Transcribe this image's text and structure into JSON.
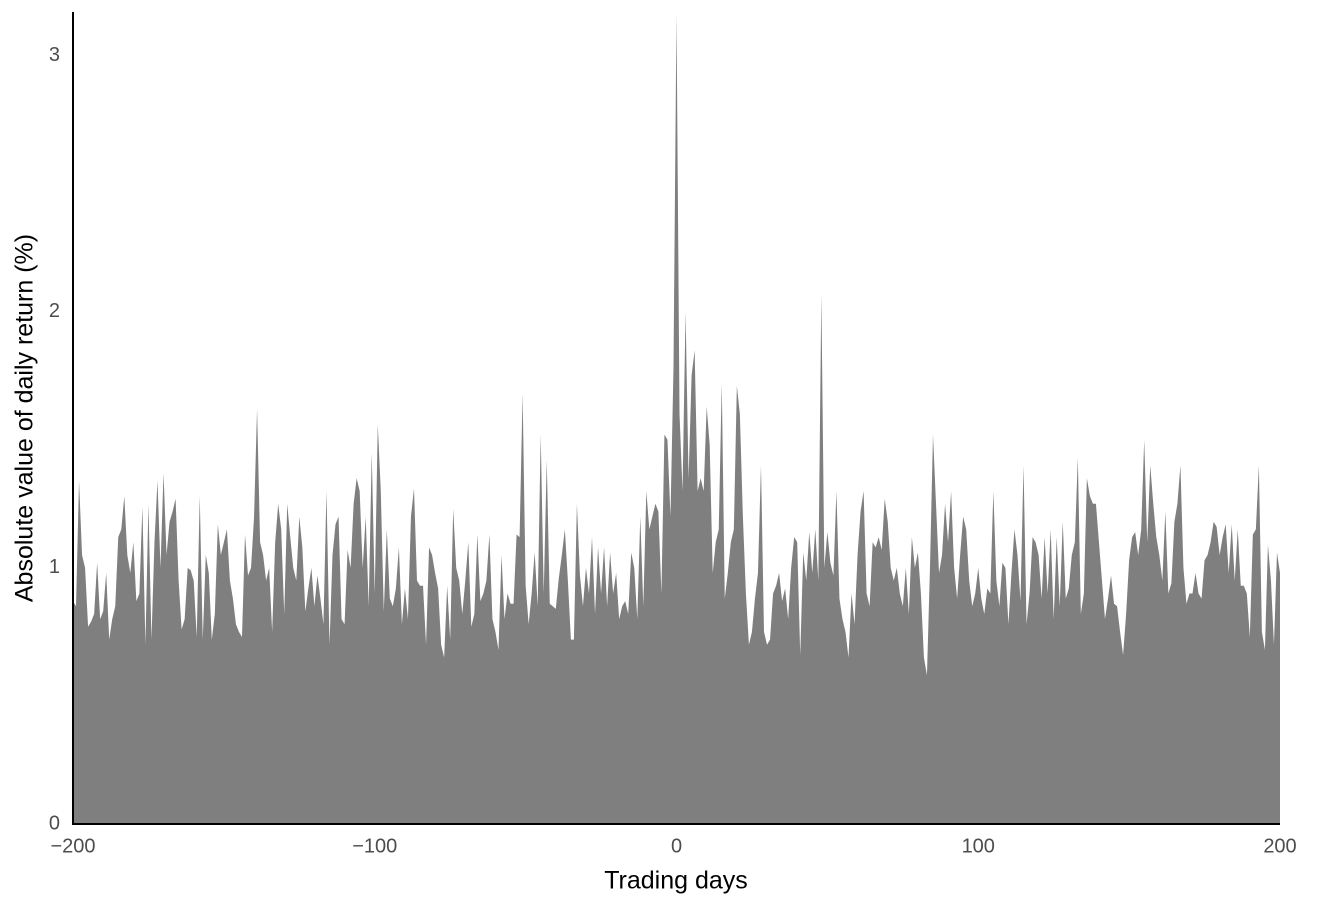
{
  "chart_data": {
    "type": "area",
    "xlabel": "Trading days",
    "ylabel": "Absolute value of daily return (%)",
    "color": "#7f7f7f",
    "grid": false,
    "xlim": [
      -200,
      200
    ],
    "ylim": [
      0,
      3.17
    ],
    "xticks": [
      {
        "value": -200,
        "label": "−200"
      },
      {
        "value": -100,
        "label": "−100"
      },
      0,
      100,
      200
    ],
    "yticks": [
      0,
      1,
      2,
      3
    ],
    "x": [
      -200,
      -199,
      -198,
      -197,
      -196,
      -195,
      -194,
      -193,
      -192,
      -191,
      -190,
      -189,
      -188,
      -187,
      -186,
      -185,
      -184,
      -183,
      -182,
      -181,
      -180,
      -179,
      -178,
      -177,
      -176,
      -175,
      -174,
      -173,
      -172,
      -171,
      -170,
      -169,
      -168,
      -167,
      -166,
      -165,
      -164,
      -163,
      -162,
      -161,
      -160,
      -159,
      -158,
      -157,
      -156,
      -155,
      -154,
      -153,
      -152,
      -151,
      -150,
      -149,
      -148,
      -147,
      -146,
      -145,
      -144,
      -143,
      -142,
      -141,
      -140,
      -139,
      -138,
      -137,
      -136,
      -135,
      -134,
      -133,
      -132,
      -131,
      -130,
      -129,
      -128,
      -127,
      -126,
      -125,
      -124,
      -123,
      -122,
      -121,
      -120,
      -119,
      -118,
      -117,
      -116,
      -115,
      -114,
      -113,
      -112,
      -111,
      -110,
      -109,
      -108,
      -107,
      -106,
      -105,
      -104,
      -103,
      -102,
      -101,
      -100,
      -99,
      -98,
      -97,
      -96,
      -95,
      -94,
      -93,
      -92,
      -91,
      -90,
      -89,
      -88,
      -87,
      -86,
      -85,
      -84,
      -83,
      -82,
      -81,
      -80,
      -79,
      -78,
      -77,
      -76,
      -75,
      -74,
      -73,
      -72,
      -71,
      -70,
      -69,
      -68,
      -67,
      -66,
      -65,
      -64,
      -63,
      -62,
      -61,
      -60,
      -59,
      -58,
      -57,
      -56,
      -55,
      -54,
      -53,
      -52,
      -51,
      -50,
      -49,
      -48,
      -47,
      -46,
      -45,
      -44,
      -43,
      -42,
      -41,
      -40,
      -39,
      -38,
      -37,
      -36,
      -35,
      -34,
      -33,
      -32,
      -31,
      -30,
      -29,
      -28,
      -27,
      -26,
      -25,
      -24,
      -23,
      -22,
      -21,
      -20,
      -19,
      -18,
      -17,
      -16,
      -15,
      -14,
      -13,
      -12,
      -11,
      -10,
      -9,
      -8,
      -7,
      -6,
      -5,
      -4,
      -3,
      -2,
      -1,
      0,
      1,
      2,
      3,
      4,
      5,
      6,
      7,
      8,
      9,
      10,
      11,
      12,
      13,
      14,
      15,
      16,
      17,
      18,
      19,
      20,
      21,
      22,
      23,
      24,
      25,
      26,
      27,
      28,
      29,
      30,
      31,
      32,
      33,
      34,
      35,
      36,
      37,
      38,
      39,
      40,
      41,
      42,
      43,
      44,
      45,
      46,
      47,
      48,
      49,
      50,
      51,
      52,
      53,
      54,
      55,
      56,
      57,
      58,
      59,
      60,
      61,
      62,
      63,
      64,
      65,
      66,
      67,
      68,
      69,
      70,
      71,
      72,
      73,
      74,
      75,
      76,
      77,
      78,
      79,
      80,
      81,
      82,
      83,
      84,
      85,
      86,
      87,
      88,
      89,
      90,
      91,
      92,
      93,
      94,
      95,
      96,
      97,
      98,
      99,
      100,
      101,
      102,
      103,
      104,
      105,
      106,
      107,
      108,
      109,
      110,
      111,
      112,
      113,
      114,
      115,
      116,
      117,
      118,
      119,
      120,
      121,
      122,
      123,
      124,
      125,
      126,
      127,
      128,
      129,
      130,
      131,
      132,
      133,
      134,
      135,
      136,
      137,
      138,
      139,
      140,
      141,
      142,
      143,
      144,
      145,
      146,
      147,
      148,
      149,
      150,
      151,
      152,
      153,
      154,
      155,
      156,
      157,
      158,
      159,
      160,
      161,
      162,
      163,
      164,
      165,
      166,
      167,
      168,
      169,
      170,
      171,
      172,
      173,
      174,
      175,
      176,
      177,
      178,
      179,
      180,
      181,
      182,
      183,
      184,
      185,
      186,
      187,
      188,
      189,
      190,
      191,
      192,
      193,
      194,
      195,
      196,
      197,
      198,
      199,
      200
    ],
    "values": [
      0.87,
      0.85,
      1.34,
      1.05,
      1.0,
      0.77,
      0.79,
      0.82,
      1.02,
      0.8,
      0.83,
      0.98,
      0.72,
      0.8,
      0.85,
      1.12,
      1.15,
      1.28,
      1.05,
      0.98,
      1.1,
      0.87,
      0.9,
      1.24,
      0.7,
      1.25,
      0.72,
      1.1,
      1.34,
      1.0,
      1.37,
      1.05,
      1.18,
      1.22,
      1.27,
      0.95,
      0.76,
      0.8,
      1.0,
      0.99,
      0.95,
      0.73,
      1.28,
      0.72,
      1.05,
      0.98,
      0.72,
      0.82,
      1.17,
      1.05,
      1.1,
      1.15,
      0.95,
      0.88,
      0.78,
      0.75,
      0.73,
      1.13,
      0.97,
      1.0,
      1.2,
      1.62,
      1.1,
      1.05,
      0.95,
      1.0,
      0.75,
      1.1,
      1.25,
      1.15,
      0.82,
      1.25,
      1.12,
      1.0,
      0.95,
      1.2,
      1.08,
      0.83,
      0.92,
      1.0,
      0.85,
      0.97,
      0.88,
      0.78,
      1.3,
      0.7,
      1.05,
      1.17,
      1.2,
      0.8,
      0.78,
      1.07,
      1.0,
      1.25,
      1.35,
      1.3,
      1.0,
      1.2,
      0.85,
      1.45,
      0.9,
      1.56,
      1.3,
      0.83,
      1.15,
      0.88,
      0.85,
      0.92,
      1.08,
      0.78,
      0.92,
      0.8,
      1.2,
      1.31,
      0.95,
      0.93,
      0.93,
      0.7,
      1.08,
      1.05,
      0.98,
      0.92,
      0.7,
      0.65,
      0.93,
      0.72,
      1.23,
      1.0,
      0.95,
      0.82,
      0.95,
      1.1,
      0.77,
      0.82,
      1.13,
      0.87,
      0.9,
      0.95,
      1.13,
      0.8,
      0.75,
      0.68,
      1.05,
      0.8,
      0.9,
      0.86,
      0.86,
      1.13,
      1.12,
      1.68,
      0.93,
      0.78,
      0.9,
      1.06,
      0.85,
      1.52,
      0.9,
      1.42,
      0.86,
      0.85,
      0.84,
      0.96,
      1.05,
      1.15,
      0.95,
      0.72,
      0.72,
      1.25,
      0.97,
      0.85,
      1.0,
      0.9,
      1.12,
      0.82,
      1.08,
      0.9,
      1.08,
      0.85,
      1.06,
      0.9,
      0.98,
      0.8,
      0.85,
      0.87,
      0.82,
      1.06,
      1.0,
      0.8,
      1.2,
      0.85,
      1.3,
      1.15,
      1.2,
      1.25,
      1.22,
      0.9,
      1.52,
      1.5,
      1.2,
      1.78,
      3.16,
      1.6,
      1.3,
      2.0,
      1.35,
      1.75,
      1.85,
      1.3,
      1.35,
      1.3,
      1.63,
      1.48,
      0.98,
      1.1,
      1.15,
      1.72,
      0.88,
      0.98,
      1.1,
      1.15,
      1.71,
      1.6,
      1.2,
      0.9,
      0.7,
      0.75,
      0.88,
      0.98,
      1.4,
      0.75,
      0.7,
      0.72,
      0.9,
      0.93,
      0.98,
      0.87,
      0.92,
      0.8,
      1.0,
      1.12,
      1.1,
      0.66,
      1.06,
      0.95,
      1.14,
      0.98,
      1.15,
      0.95,
      2.07,
      1.0,
      1.14,
      1.02,
      0.97,
      1.3,
      0.88,
      0.8,
      0.75,
      0.65,
      0.9,
      0.78,
      1.05,
      1.22,
      1.3,
      0.9,
      0.85,
      1.1,
      1.08,
      1.12,
      1.07,
      1.27,
      1.18,
      1.0,
      0.95,
      1.0,
      0.9,
      0.85,
      1.0,
      0.82,
      1.12,
      1.0,
      1.06,
      0.9,
      0.65,
      0.58,
      1.0,
      1.52,
      1.25,
      0.98,
      1.05,
      1.25,
      1.1,
      1.3,
      1.0,
      0.88,
      1.05,
      1.2,
      1.15,
      0.95,
      0.85,
      0.9,
      1.0,
      0.88,
      0.82,
      0.92,
      0.9,
      1.3,
      0.95,
      0.85,
      1.02,
      1.0,
      0.78,
      0.98,
      1.15,
      1.05,
      0.87,
      1.4,
      0.78,
      0.9,
      1.12,
      1.1,
      1.05,
      0.88,
      1.12,
      0.9,
      1.15,
      0.8,
      1.12,
      0.85,
      1.18,
      0.88,
      0.92,
      1.05,
      1.1,
      1.43,
      0.82,
      0.9,
      1.35,
      1.28,
      1.25,
      1.25,
      1.1,
      0.95,
      0.8,
      0.88,
      0.97,
      0.86,
      0.85,
      0.75,
      0.66,
      0.82,
      1.03,
      1.12,
      1.14,
      1.05,
      1.15,
      1.5,
      1.1,
      1.4,
      1.25,
      1.12,
      1.05,
      0.95,
      1.22,
      0.9,
      0.94,
      1.18,
      1.25,
      1.4,
      1.0,
      0.86,
      0.9,
      0.9,
      0.98,
      0.9,
      0.88,
      1.03,
      1.05,
      1.1,
      1.18,
      1.16,
      1.05,
      1.12,
      1.17,
      0.98,
      1.17,
      0.95,
      1.15,
      0.93,
      0.93,
      0.9,
      0.73,
      1.13,
      1.15,
      1.4,
      0.75,
      0.68,
      1.09,
      0.95,
      0.7,
      1.06,
      0.98
    ]
  }
}
